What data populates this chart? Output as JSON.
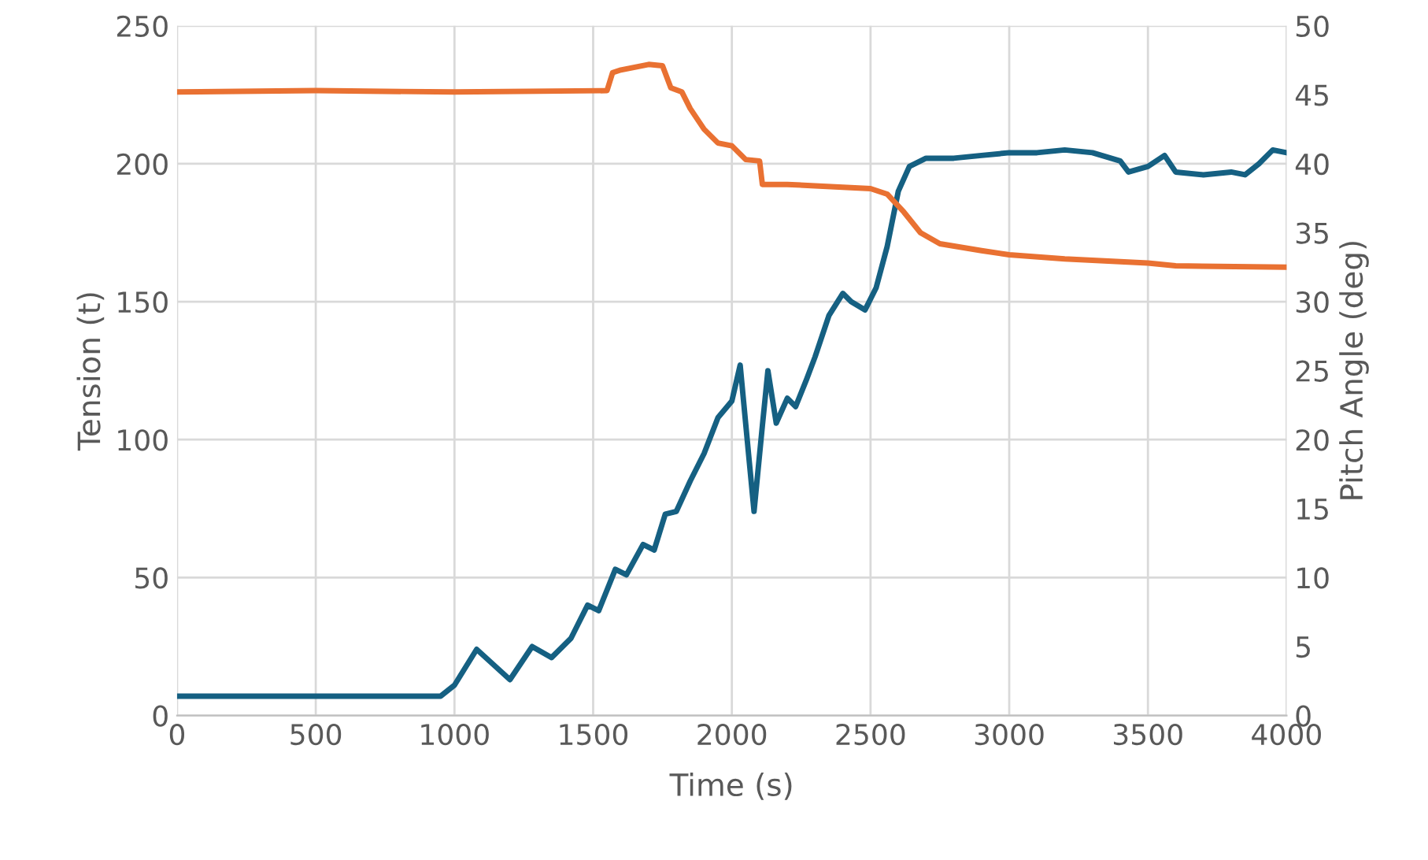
{
  "chart_data": {
    "type": "line",
    "xlabel": "Time (s)",
    "ylabel": "Tension (t)",
    "y2label": "Pitch Angle (deg)",
    "xlim": [
      0,
      4000
    ],
    "xticks": [
      0,
      500,
      1000,
      1500,
      2000,
      2500,
      3000,
      3500,
      4000
    ],
    "ylim": [
      0,
      250
    ],
    "yticks": [
      0,
      50,
      100,
      150,
      200,
      250
    ],
    "y2lim": [
      0,
      50
    ],
    "y2ticks": [
      0,
      5,
      10,
      15,
      20,
      25,
      30,
      35,
      40,
      45,
      50
    ],
    "grid": true,
    "legend": false,
    "series": [
      {
        "color": "#156082",
        "x": [
          0,
          500,
          950,
          1000,
          1080,
          1200,
          1280,
          1350,
          1420,
          1480,
          1520,
          1580,
          1620,
          1680,
          1720,
          1760,
          1800,
          1850,
          1900,
          1950,
          2000,
          2030,
          2060,
          2080,
          2110,
          2130,
          2160,
          2200,
          2230,
          2270,
          2300,
          2350,
          2400,
          2430,
          2480,
          2520,
          2560,
          2600,
          2640,
          2700,
          2800,
          2900,
          3000,
          3100,
          3200,
          3300,
          3400,
          3430,
          3500,
          3560,
          3600,
          3700,
          3800,
          3850,
          3900,
          3950,
          4000
        ],
        "values": [
          7,
          7,
          7,
          11,
          24,
          13,
          25,
          21,
          28,
          40,
          38,
          53,
          51,
          62,
          60,
          73,
          74,
          85,
          95,
          108,
          114,
          127,
          95,
          74,
          105,
          125,
          106,
          115,
          112,
          122,
          130,
          145,
          153,
          150,
          147,
          155,
          170,
          190,
          199,
          202,
          202,
          203,
          204,
          204,
          205,
          204,
          201,
          197,
          199,
          203,
          197,
          196,
          197,
          196,
          200,
          205,
          204
        ]
      },
      {
        "color": "#e97132",
        "axis": "y2",
        "x": [
          0,
          500,
          1000,
          1550,
          1570,
          1600,
          1650,
          1700,
          1750,
          1780,
          1820,
          1850,
          1900,
          1950,
          2000,
          2050,
          2100,
          2110,
          2200,
          2300,
          2400,
          2500,
          2560,
          2620,
          2680,
          2750,
          2900,
          3000,
          3200,
          3500,
          3600,
          4000
        ],
        "values": [
          45.2,
          45.3,
          45.2,
          45.3,
          46.6,
          46.8,
          47.0,
          47.2,
          47.1,
          45.5,
          45.2,
          44,
          42.5,
          41.5,
          41.3,
          40.3,
          40.2,
          38.5,
          38.5,
          38.4,
          38.3,
          38.2,
          37.8,
          36.5,
          35,
          34.2,
          33.7,
          33.4,
          33.1,
          32.8,
          32.6,
          32.5
        ]
      }
    ]
  }
}
